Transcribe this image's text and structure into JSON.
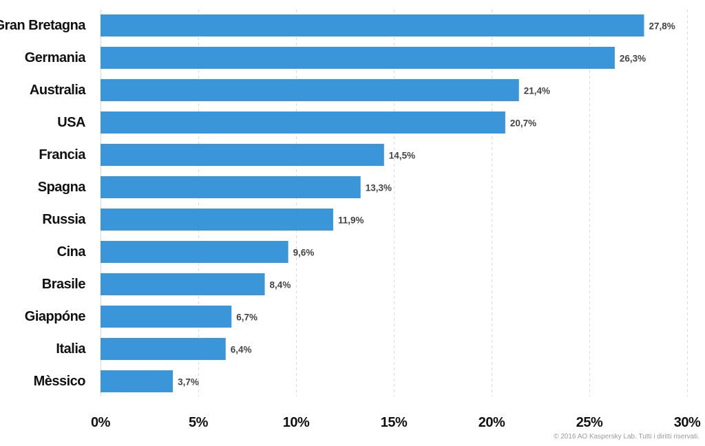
{
  "chart_data": {
    "type": "bar",
    "orientation": "horizontal",
    "categories": [
      "Gran Bretagna",
      "Germania",
      "Australia",
      "USA",
      "Francia",
      "Spagna",
      "Russia",
      "Cina",
      "Brasile",
      "Giappóne",
      "Italia",
      "Mèssico"
    ],
    "values": [
      27.8,
      26.3,
      21.4,
      20.7,
      14.5,
      13.3,
      11.9,
      9.6,
      8.4,
      6.7,
      6.4,
      3.7
    ],
    "value_labels": [
      "27,8%",
      "26,3%",
      "21,4%",
      "20,7%",
      "14,5%",
      "13,3%",
      "11,9%",
      "9,6%",
      "8,4%",
      "6,7%",
      "6,4%",
      "3,7%"
    ],
    "xlim": [
      0,
      30
    ],
    "xticks": [
      0,
      5,
      10,
      15,
      20,
      25,
      30
    ],
    "xtick_labels": [
      "0%",
      "5%",
      "10%",
      "15%",
      "20%",
      "25%",
      "30%"
    ],
    "grid": "vertical-dashed",
    "bar_color": "#3a96d8"
  },
  "footer": {
    "copyright": "© 2016 AO Kaspersky Lab. Tutti i diritti riservati."
  }
}
